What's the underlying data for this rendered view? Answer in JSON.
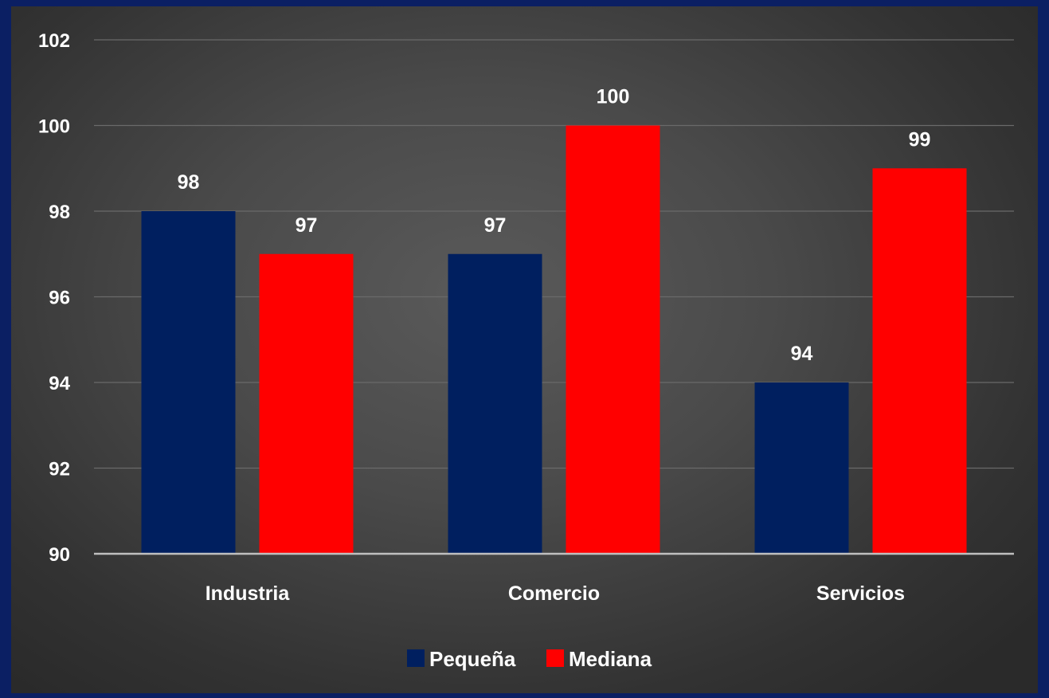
{
  "chart_data": {
    "type": "bar",
    "title": "",
    "xlabel": "",
    "ylabel": "",
    "categories": [
      "Industria",
      "Comercio",
      "Servicios"
    ],
    "series": [
      {
        "name": "Pequeña",
        "values": [
          98,
          97,
          94
        ],
        "color": "#001f5f"
      },
      {
        "name": "Mediana",
        "values": [
          97,
          100,
          99
        ],
        "color": "#ff0000"
      }
    ],
    "ylim": [
      90,
      102
    ],
    "yticks": [
      "90",
      "92",
      "94",
      "96",
      "98",
      "100",
      "102"
    ],
    "grid": true,
    "legend_position": "bottom",
    "colors": {
      "background": "#4a4a4a",
      "border": "#0b1f63",
      "gridline": "#6a6a6a",
      "axis": "#bfbfbf"
    }
  }
}
